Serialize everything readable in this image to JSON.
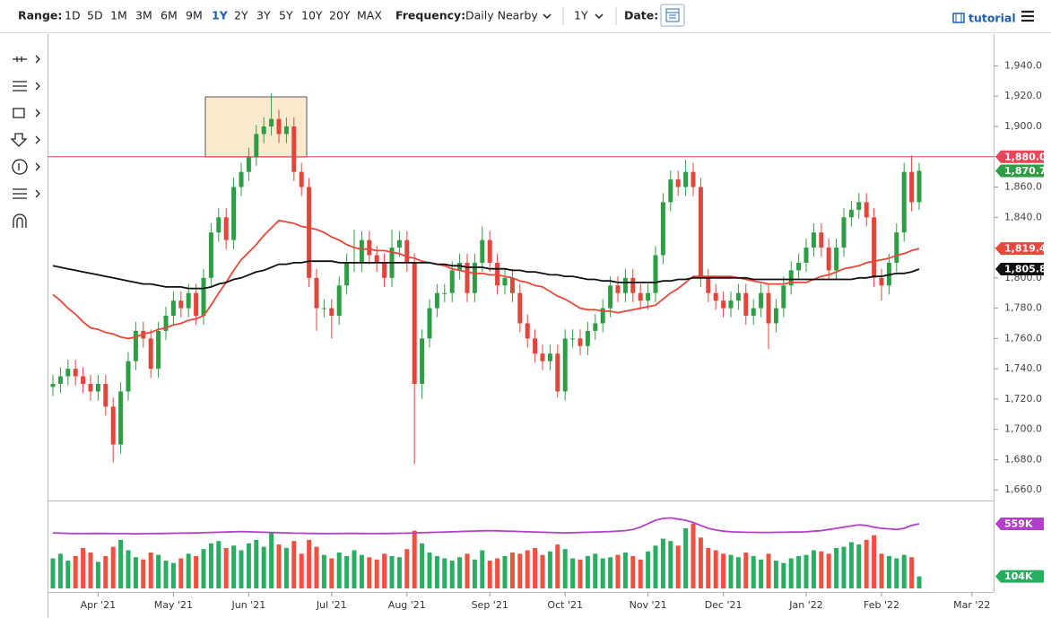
{
  "toolbar": {
    "range_label": "Range:",
    "ranges": [
      "1D",
      "5D",
      "1M",
      "3M",
      "6M",
      "9M",
      "1Y",
      "2Y",
      "3Y",
      "5Y",
      "10Y",
      "20Y",
      "MAX"
    ],
    "active_range": 6,
    "frequency_label": "Frequency:",
    "frequency": "Daily Nearby",
    "period": "1Y",
    "date_label": "Date:",
    "tutorial": "tutorial"
  },
  "chart_data": {
    "type": "candlestick",
    "categories": [
      null,
      null,
      null,
      null,
      null,
      null,
      "Apr '21",
      null,
      null,
      null,
      null,
      null,
      null,
      null,
      null,
      null,
      "May '21",
      null,
      null,
      null,
      null,
      null,
      null,
      null,
      null,
      null,
      "Jun '21",
      null,
      null,
      null,
      null,
      null,
      null,
      null,
      null,
      null,
      null,
      "Jul '21",
      null,
      null,
      null,
      null,
      null,
      null,
      null,
      null,
      null,
      "Aug '21",
      null,
      null,
      null,
      null,
      null,
      null,
      null,
      null,
      null,
      null,
      "Sep '21",
      null,
      null,
      null,
      null,
      null,
      null,
      null,
      null,
      null,
      "Oct '21",
      null,
      null,
      null,
      null,
      null,
      null,
      null,
      null,
      null,
      null,
      "Nov '21",
      null,
      null,
      null,
      null,
      null,
      null,
      null,
      null,
      null,
      "Dec '21",
      null,
      null,
      null,
      null,
      null,
      null,
      null,
      null,
      null,
      null,
      "Jan '22",
      null,
      null,
      null,
      null,
      null,
      null,
      null,
      null,
      null,
      "Feb '22",
      null,
      null,
      null,
      null,
      null,
      null,
      null,
      null,
      null,
      null,
      null,
      "Mar '22",
      null
    ],
    "open": [
      1728,
      1730,
      1735,
      1740,
      1735,
      1730,
      1725,
      1730,
      1715,
      1690,
      1725,
      1745,
      1765,
      1760,
      1740,
      1765,
      1775,
      1785,
      1780,
      1790,
      1775,
      1800,
      1830,
      1840,
      1825,
      1860,
      1870,
      1880,
      1895,
      1900,
      1905,
      1895,
      1900,
      1870,
      1860,
      1800,
      1780,
      1780,
      1775,
      1795,
      1810,
      1810,
      1825,
      1815,
      1810,
      1800,
      1820,
      1825,
      1810,
      1730,
      1760,
      1780,
      1790,
      1790,
      1805,
      1810,
      1790,
      1810,
      1825,
      1810,
      1795,
      1800,
      1790,
      1770,
      1760,
      1750,
      1745,
      1750,
      1725,
      1760,
      1760,
      1755,
      1765,
      1770,
      1780,
      1795,
      1790,
      1800,
      1790,
      1785,
      1790,
      1815,
      1850,
      1865,
      1860,
      1870,
      1860,
      1800,
      1790,
      1785,
      1780,
      1785,
      1790,
      1775,
      1780,
      1790,
      1770,
      1780,
      1795,
      1805,
      1810,
      1820,
      1830,
      1820,
      1805,
      1820,
      1840,
      1845,
      1850,
      1840,
      1800,
      1795,
      1810,
      1830,
      1870,
      1850,
      null,
      null,
      null,
      null,
      null,
      null,
      null,
      null
    ],
    "high": [
      1736,
      1741,
      1746,
      1746,
      1741,
      1736,
      1736,
      1736,
      1721,
      1731,
      1751,
      1771,
      1771,
      1766,
      1771,
      1781,
      1791,
      1791,
      1796,
      1796,
      1806,
      1836,
      1846,
      1846,
      1866,
      1876,
      1886,
      1901,
      1906,
      1922,
      1911,
      1906,
      1906,
      1876,
      1866,
      1806,
      1786,
      1786,
      1801,
      1816,
      1832,
      1831,
      1831,
      1821,
      1816,
      1832,
      1831,
      1831,
      1816,
      1766,
      1786,
      1796,
      1796,
      1811,
      1816,
      1816,
      1816,
      1834,
      1831,
      1816,
      1806,
      1806,
      1796,
      1776,
      1766,
      1756,
      1756,
      1756,
      1766,
      1766,
      1766,
      1771,
      1776,
      1786,
      1801,
      1801,
      1806,
      1806,
      1796,
      1796,
      1821,
      1856,
      1871,
      1871,
      1878,
      1876,
      1866,
      1806,
      1796,
      1791,
      1791,
      1796,
      1796,
      1786,
      1796,
      1796,
      1786,
      1801,
      1811,
      1816,
      1826,
      1836,
      1836,
      1826,
      1826,
      1846,
      1851,
      1856,
      1856,
      1846,
      1806,
      1816,
      1836,
      1876,
      1881,
      1876,
      null,
      null,
      null,
      null,
      null,
      null,
      null,
      null
    ],
    "low": [
      1722,
      1724,
      1729,
      1729,
      1724,
      1719,
      1719,
      1709,
      1678,
      1684,
      1719,
      1739,
      1754,
      1734,
      1734,
      1759,
      1769,
      1774,
      1774,
      1769,
      1769,
      1794,
      1824,
      1819,
      1819,
      1854,
      1864,
      1874,
      1889,
      1894,
      1889,
      1889,
      1864,
      1854,
      1794,
      1765,
      1774,
      1760,
      1769,
      1789,
      1804,
      1804,
      1809,
      1804,
      1794,
      1794,
      1814,
      1804,
      1677,
      1720,
      1754,
      1774,
      1784,
      1784,
      1799,
      1784,
      1784,
      1804,
      1804,
      1789,
      1789,
      1784,
      1764,
      1754,
      1744,
      1739,
      1739,
      1721,
      1719,
      1754,
      1749,
      1749,
      1759,
      1764,
      1774,
      1784,
      1784,
      1784,
      1779,
      1779,
      1784,
      1809,
      1844,
      1854,
      1854,
      1854,
      1794,
      1784,
      1779,
      1774,
      1774,
      1779,
      1769,
      1769,
      1774,
      1753,
      1764,
      1774,
      1789,
      1799,
      1804,
      1814,
      1814,
      1799,
      1799,
      1814,
      1834,
      1839,
      1834,
      1794,
      1785,
      1789,
      1804,
      1824,
      1844,
      1845,
      null,
      null,
      null,
      null,
      null,
      null,
      null,
      null
    ],
    "close": [
      1730,
      1735,
      1740,
      1735,
      1730,
      1725,
      1730,
      1715,
      1690,
      1725,
      1745,
      1765,
      1760,
      1740,
      1765,
      1775,
      1785,
      1780,
      1790,
      1775,
      1800,
      1830,
      1840,
      1825,
      1860,
      1870,
      1880,
      1895,
      1900,
      1905,
      1895,
      1900,
      1870,
      1860,
      1800,
      1780,
      1780,
      1775,
      1795,
      1810,
      1810,
      1825,
      1815,
      1810,
      1800,
      1820,
      1825,
      1810,
      1730,
      1760,
      1780,
      1790,
      1790,
      1805,
      1810,
      1790,
      1810,
      1825,
      1810,
      1795,
      1800,
      1790,
      1770,
      1760,
      1750,
      1745,
      1750,
      1725,
      1760,
      1760,
      1755,
      1765,
      1770,
      1780,
      1795,
      1790,
      1800,
      1790,
      1785,
      1790,
      1815,
      1850,
      1865,
      1860,
      1870,
      1860,
      1800,
      1790,
      1785,
      1780,
      1785,
      1790,
      1775,
      1780,
      1790,
      1770,
      1780,
      1795,
      1805,
      1810,
      1820,
      1830,
      1820,
      1805,
      1820,
      1840,
      1845,
      1850,
      1840,
      1800,
      1795,
      1810,
      1830,
      1870,
      1850,
      1870.7,
      null,
      null,
      null,
      null,
      null,
      null,
      null,
      null
    ],
    "close_label": "1,870.7",
    "up_color": "#2e9e44",
    "down_color": "#e0463a",
    "ylim": [
      1653,
      1961
    ],
    "yticks": [
      {
        "value": 1660,
        "label": "1,660.0"
      },
      {
        "value": 1680,
        "label": "1,680.0"
      },
      {
        "value": 1700,
        "label": "1,700.0"
      },
      {
        "value": 1720,
        "label": "1,720.0"
      },
      {
        "value": 1740,
        "label": "1,740.0"
      },
      {
        "value": 1760,
        "label": "1,760.0"
      },
      {
        "value": 1780,
        "label": "1,780.0"
      },
      {
        "value": 1800,
        "label": "1,800.0"
      },
      {
        "value": 1820,
        "label": "1,820.0"
      },
      {
        "value": 1840,
        "label": "1,840.0"
      },
      {
        "value": 1860,
        "label": "1,860.0"
      },
      {
        "value": 1880,
        "label": "1,880.0"
      },
      {
        "value": 1900,
        "label": "1,900.0"
      },
      {
        "value": 1920,
        "label": "1,920.0"
      },
      {
        "value": 1940,
        "label": "1,940.0"
      }
    ],
    "hline": {
      "value": 1880,
      "label": "1,880.0",
      "color": "#e8475a"
    },
    "lines": [
      {
        "color": "#e8473a",
        "last_label": "1,819.4",
        "values": [
          1789,
          1785,
          1780,
          1776,
          1771,
          1767,
          1766,
          1764,
          1763,
          1761,
          1760,
          1761,
          1763,
          1764,
          1766,
          1767,
          1769,
          1770,
          1772,
          1773,
          1775,
          1782,
          1790,
          1797,
          1805,
          1812,
          1817,
          1822,
          1828,
          1833,
          1838,
          1837,
          1836,
          1834,
          1833,
          1832,
          1830,
          1827,
          1825,
          1822,
          1820,
          1819,
          1819,
          1818,
          1818,
          1817,
          1816,
          1814,
          1813,
          1811,
          1810,
          1809,
          1808,
          1806,
          1805,
          1804,
          1803,
          1803,
          1802,
          1802,
          1801,
          1800,
          1798,
          1797,
          1795,
          1794,
          1791,
          1788,
          1786,
          1783,
          1780,
          1779,
          1779,
          1778,
          1778,
          1777,
          1778,
          1779,
          1780,
          1781,
          1782,
          1786,
          1790,
          1793,
          1797,
          1801,
          1801,
          1801,
          1801,
          1801,
          1801,
          1800,
          1799,
          1798,
          1797,
          1796,
          1796,
          1796,
          1797,
          1797,
          1797,
          1799,
          1801,
          1802,
          1804,
          1806,
          1807,
          1808,
          1810,
          1811,
          1812,
          1813,
          1815,
          1816,
          1818,
          1819.4,
          null,
          null,
          null,
          null,
          null,
          null,
          null,
          null
        ]
      },
      {
        "color": "#111111",
        "last_label": "1,805.8",
        "values": [
          1808,
          1807,
          1806,
          1805,
          1804,
          1803,
          1802,
          1801,
          1800,
          1799,
          1798,
          1797,
          1796,
          1796,
          1795,
          1794,
          1794,
          1794,
          1793,
          1793,
          1793,
          1794,
          1796,
          1797,
          1799,
          1800,
          1802,
          1804,
          1805,
          1807,
          1809,
          1809,
          1810,
          1810,
          1811,
          1811,
          1811,
          1811,
          1810,
          1810,
          1810,
          1810,
          1810,
          1810,
          1810,
          1810,
          1810,
          1810,
          1810,
          1810,
          1810,
          1809,
          1809,
          1808,
          1808,
          1807,
          1807,
          1807,
          1806,
          1806,
          1806,
          1805,
          1805,
          1804,
          1804,
          1803,
          1802,
          1802,
          1801,
          1801,
          1800,
          1799,
          1799,
          1798,
          1798,
          1797,
          1797,
          1797,
          1797,
          1797,
          1797,
          1798,
          1798,
          1799,
          1799,
          1800,
          1800,
          1800,
          1800,
          1800,
          1800,
          1800,
          1800,
          1799,
          1799,
          1799,
          1799,
          1799,
          1799,
          1799,
          1799,
          1799,
          1799,
          1799,
          1799,
          1799,
          1799,
          1800,
          1800,
          1801,
          1801,
          1802,
          1803,
          1803,
          1804,
          1805.8,
          null,
          null,
          null,
          null,
          null,
          null,
          null,
          null
        ]
      }
    ],
    "volume": {
      "ylim": [
        0,
        745
      ],
      "last_label": "104K",
      "values": [
        260,
        300,
        240,
        280,
        350,
        310,
        230,
        280,
        360,
        420,
        330,
        270,
        250,
        310,
        290,
        240,
        220,
        260,
        300,
        280,
        340,
        390,
        410,
        350,
        370,
        330,
        390,
        420,
        360,
        480,
        380,
        350,
        410,
        300,
        420,
        360,
        290,
        260,
        310,
        280,
        330,
        290,
        270,
        250,
        300,
        280,
        270,
        340,
        500,
        390,
        310,
        280,
        260,
        240,
        270,
        300,
        250,
        330,
        240,
        260,
        280,
        310,
        300,
        330,
        350,
        290,
        320,
        380,
        340,
        260,
        250,
        280,
        300,
        260,
        270,
        290,
        310,
        280,
        250,
        320,
        370,
        430,
        410,
        370,
        520,
        560,
        440,
        350,
        330,
        300,
        290,
        270,
        310,
        280,
        250,
        300,
        240,
        220,
        260,
        280,
        290,
        330,
        320,
        300,
        350,
        360,
        400,
        380,
        420,
        460,
        300,
        280,
        260,
        290,
        270,
        104,
        null,
        null,
        null,
        null,
        null,
        null,
        null,
        null
      ]
    },
    "open_interest": {
      "color": "#b140c8",
      "last_label": "559K",
      "values": [
        480,
        478,
        476,
        475,
        474,
        475,
        476,
        475,
        474,
        473,
        473,
        472,
        473,
        474,
        475,
        476,
        477,
        478,
        479,
        480,
        482,
        484,
        486,
        488,
        490,
        492,
        490,
        488,
        486,
        484,
        482,
        480,
        478,
        477,
        476,
        475,
        474,
        474,
        475,
        476,
        476,
        475,
        474,
        474,
        475,
        476,
        477,
        478,
        480,
        482,
        484,
        486,
        488,
        490,
        492,
        494,
        496,
        498,
        500,
        498,
        496,
        494,
        492,
        490,
        488,
        486,
        484,
        482,
        480,
        482,
        484,
        486,
        488,
        490,
        492,
        496,
        500,
        510,
        530,
        560,
        590,
        605,
        610,
        600,
        590,
        570,
        545,
        520,
        505,
        495,
        490,
        488,
        486,
        485,
        484,
        484,
        485,
        486,
        487,
        488,
        490,
        495,
        500,
        510,
        520,
        530,
        540,
        550,
        545,
        530,
        520,
        515,
        510,
        520,
        545,
        559,
        null,
        null,
        null,
        null,
        null,
        null,
        null,
        null
      ]
    }
  }
}
